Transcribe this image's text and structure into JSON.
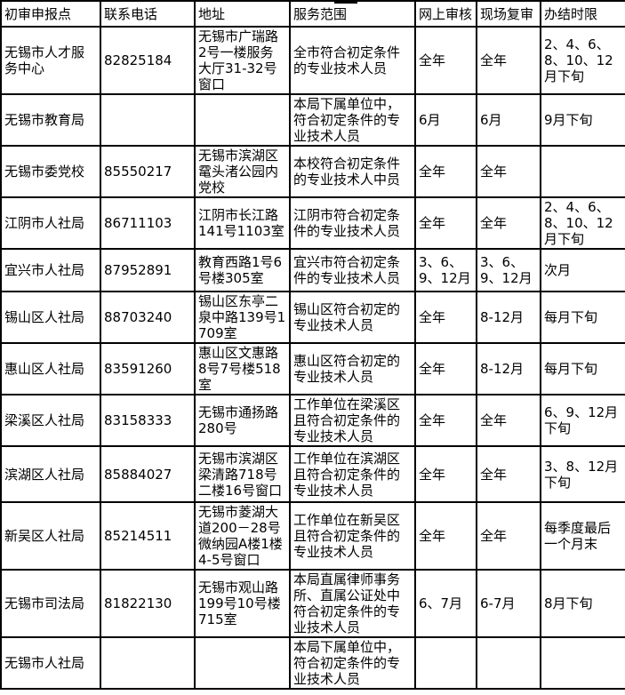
{
  "table": {
    "columns": [
      "初审申报点",
      "联系电话",
      "地址",
      "服务范围",
      "网上审核",
      "现场复审",
      "办结时限"
    ],
    "rows": [
      [
        "无锡市人才服务中心",
        "82825184",
        "无锡市广瑞路2号一楼服务大厅31-32号窗口",
        "全市符合初定条件的专业技术人员",
        "全年",
        "全年",
        "2、4、6、8、10、12月下旬"
      ],
      [
        "无锡市教育局",
        "",
        "",
        "本局下属单位中，符合初定条件的专业技术人员",
        "6月",
        "6月",
        "9月下旬"
      ],
      [
        "无锡市委党校",
        "85550217",
        "无锡市滨湖区鼋头渚公园内党校",
        "本校符合初定条件的专业技术人中员",
        "全年",
        "全年",
        ""
      ],
      [
        "江阴市人社局",
        "86711103",
        "江阴市长江路141号1103室",
        "江阴市符合初定条件的专业技术人员",
        "全年",
        "全年",
        "2、4、6、8、10、12月下旬"
      ],
      [
        "宜兴市人社局",
        "87952891",
        "教育西路1号6号楼305室",
        "宜兴市符合初定条件的专业技术人员",
        "3、6、9、12月",
        "3、6、9、12月",
        "次月"
      ],
      [
        "锡山区人社局",
        "88703240",
        "锡山区东亭二泉中路139号1709室",
        "锡山区符合初定的专业技术人员",
        "全年",
        "8-12月",
        "每月下旬"
      ],
      [
        "惠山区人社局",
        "83591260",
        "惠山区文惠路8号7号楼518室",
        "惠山区符合初定的专业技术人员",
        "全年",
        "8-12月",
        "每月下旬"
      ],
      [
        "梁溪区人社局",
        "83158333",
        "无锡市通扬路280号",
        "工作单位在梁溪区且符合初定条件的专业技术人员",
        "全年",
        "全年",
        "6、9、12月下旬"
      ],
      [
        "滨湖区人社局",
        "85884027",
        "无锡市滨湖区梁清路718号二楼16号窗口",
        "工作单位在滨湖区且符合初定条件的专业技术人员",
        "全年",
        "全年",
        "3、8、12月下旬"
      ],
      [
        "新吴区人社局",
        "85214511",
        "无锡市菱湖大道200－28号微纳园A楼1楼4-5号窗口",
        "工作单位在新吴区且符合初定条件的专业技术人员",
        "全年",
        "全年",
        "每季度最后一个月末"
      ],
      [
        "无锡市司法局",
        "81822130",
        "无锡市观山路199号10号楼715室",
        "本局直属律师事务所、直属公证处中符合初定条件的专业技术人员",
        "6、7月",
        "6-7月",
        "8月下旬"
      ],
      [
        "无锡市人社局",
        "",
        "",
        "本局下属单位中，符合初定条件的专业技术人员",
        "",
        "",
        ""
      ]
    ]
  },
  "colors": {
    "border": "#000000",
    "background": "#ffffff",
    "text": "#000000"
  }
}
